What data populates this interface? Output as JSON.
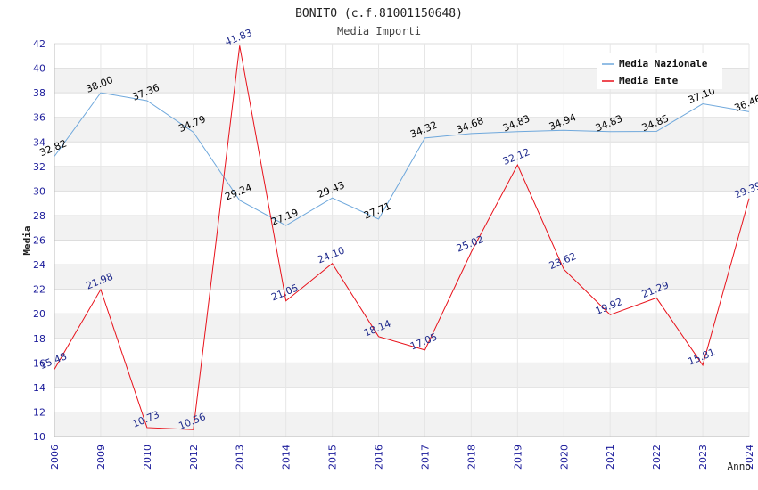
{
  "chart_data": {
    "type": "line",
    "title": "BONITO (c.f.81001150648)",
    "subtitle": "Media Importi",
    "xlabel": "Anno",
    "ylabel": "Media",
    "categories": [
      "2006",
      "2009",
      "2010",
      "2012",
      "2013",
      "2014",
      "2015",
      "2016",
      "2017",
      "2018",
      "2019",
      "2020",
      "2021",
      "2022",
      "2023",
      "2024"
    ],
    "ylim": [
      10,
      42
    ],
    "y_ticks": [
      10,
      12,
      14,
      16,
      18,
      20,
      22,
      24,
      26,
      28,
      30,
      32,
      34,
      36,
      38,
      40,
      42
    ],
    "grid": true,
    "legend_position": "top-right",
    "series": [
      {
        "name": "Media Nazionale",
        "color": "#6fa8dc",
        "label_color": "#000000",
        "values": [
          32.82,
          38.0,
          37.36,
          34.79,
          29.24,
          27.19,
          29.43,
          27.71,
          34.32,
          34.68,
          34.83,
          34.94,
          34.83,
          34.85,
          37.1,
          36.46
        ],
        "labels": [
          "32.82",
          "38.00",
          "37.36",
          "34.79",
          "29.24",
          "27.19",
          "29.43",
          "27.71",
          "34.32",
          "34.68",
          "34.83",
          "34.94",
          "34.83",
          "34.85",
          "37.10",
          "36.46"
        ]
      },
      {
        "name": "Media Ente",
        "color": "#e8111a",
        "label_color": "#1f2a8c",
        "values": [
          15.48,
          21.98,
          10.73,
          10.56,
          41.83,
          21.05,
          24.1,
          18.14,
          17.05,
          25.02,
          32.12,
          23.62,
          19.92,
          21.29,
          15.81,
          29.39
        ],
        "labels": [
          "15.48",
          "21.98",
          "10.73",
          "10.56",
          "41.83",
          "21.05",
          "24.10",
          "18.14",
          "17.05",
          "25.02",
          "32.12",
          "23.62",
          "19.92",
          "21.29",
          "15.81",
          "29.39"
        ]
      }
    ]
  }
}
